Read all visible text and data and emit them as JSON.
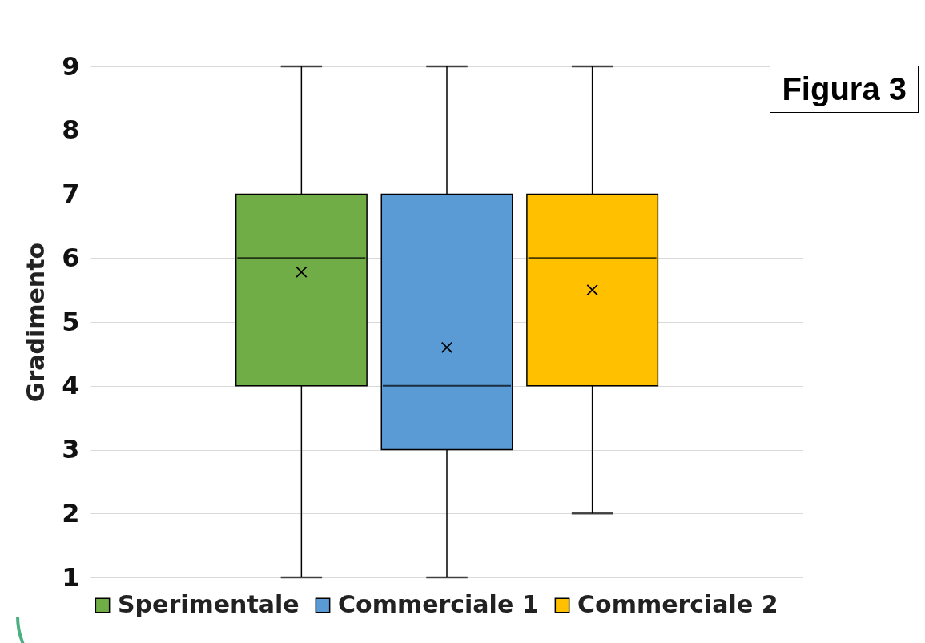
{
  "chart_data": {
    "type": "box",
    "ylabel": "Gradimento",
    "ylim": [
      1,
      9
    ],
    "yticks": [
      1,
      2,
      3,
      4,
      5,
      6,
      7,
      8,
      9
    ],
    "grid": "y",
    "legend": "bottom",
    "tick_labels": "y",
    "annotations": [
      "Figura 3"
    ],
    "series": [
      {
        "name": "Sperimentale",
        "color": "#70ad47",
        "boxes": [
          {
            "low": 1,
            "q1": 4,
            "median": 6,
            "q3": 7,
            "high": 9,
            "mean": 5.78
          }
        ]
      },
      {
        "name": "Commerciale 1",
        "color": "#5b9bd5",
        "boxes": [
          {
            "low": 1,
            "q1": 3,
            "median": 4,
            "q3": 7,
            "high": 9,
            "mean": 4.6
          }
        ]
      },
      {
        "name": "Commerciale 2",
        "color": "#ffc000",
        "boxes": [
          {
            "low": 2,
            "q1": 4,
            "median": 6,
            "q3": 7,
            "high": 9,
            "mean": 5.5
          }
        ]
      }
    ]
  }
}
